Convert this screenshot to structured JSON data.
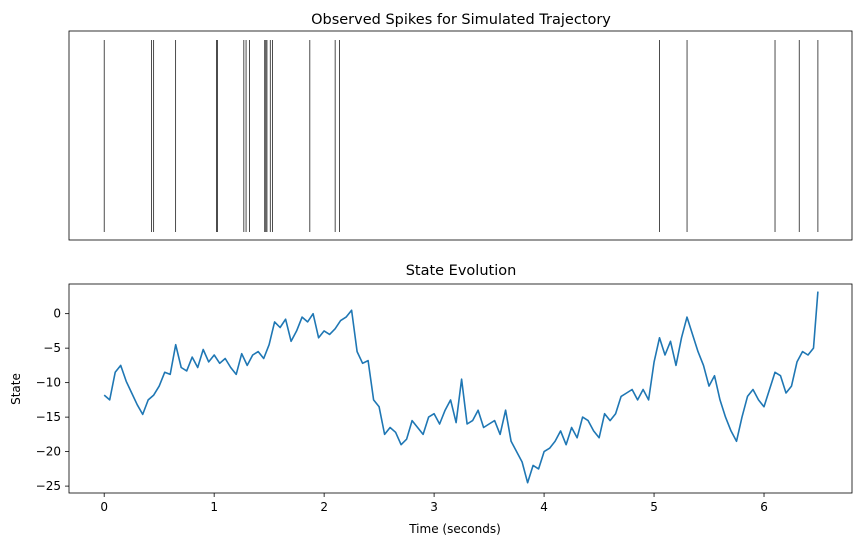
{
  "chart_data": [
    {
      "type": "raster",
      "title": "Observed Spikes for Simulated Trajectory",
      "xlabel": "",
      "ylabel": "",
      "xlim": [
        -0.32,
        6.8
      ],
      "spike_times": [
        0.0,
        0.43,
        0.45,
        0.65,
        1.02,
        1.03,
        1.27,
        1.29,
        1.32,
        1.46,
        1.47,
        1.48,
        1.51,
        1.53,
        1.87,
        2.1,
        2.14,
        5.05,
        5.3,
        6.1,
        6.32,
        6.49
      ],
      "color": "#000000"
    },
    {
      "type": "line",
      "title": "State Evolution",
      "xlabel": "Time (seconds)",
      "ylabel": "State",
      "xlim": [
        -0.32,
        6.8
      ],
      "ylim": [
        -26,
        4.3
      ],
      "xticks": [
        0,
        1,
        2,
        3,
        4,
        5,
        6
      ],
      "xtick_labels": [
        "0",
        "1",
        "2",
        "3",
        "4",
        "5",
        "6"
      ],
      "yticks": [
        0,
        -5,
        -10,
        -15,
        -20,
        -25
      ],
      "ytick_labels": [
        "0",
        "−5",
        "−10",
        "−15",
        "−20",
        "−25"
      ],
      "color": "#1f77b4",
      "series": [
        {
          "x": [
            0.0,
            0.05,
            0.1,
            0.15,
            0.2,
            0.25,
            0.3,
            0.35,
            0.4,
            0.45,
            0.5,
            0.55,
            0.6,
            0.65,
            0.7,
            0.75,
            0.8,
            0.85,
            0.9,
            0.95,
            1.0,
            1.05,
            1.1,
            1.15,
            1.2,
            1.25,
            1.3,
            1.35,
            1.4,
            1.45,
            1.5,
            1.55,
            1.6,
            1.65,
            1.7,
            1.75,
            1.8,
            1.85,
            1.9,
            1.95,
            2.0,
            2.05,
            2.1,
            2.15,
            2.2,
            2.25,
            2.3,
            2.35,
            2.4,
            2.45,
            2.5,
            2.55,
            2.6,
            2.65,
            2.7,
            2.75,
            2.8,
            2.85,
            2.9,
            2.95,
            3.0,
            3.05,
            3.1,
            3.15,
            3.2,
            3.25,
            3.3,
            3.35,
            3.4,
            3.45,
            3.5,
            3.55,
            3.6,
            3.65,
            3.7,
            3.75,
            3.8,
            3.85,
            3.9,
            3.95,
            4.0,
            4.05,
            4.1,
            4.15,
            4.2,
            4.25,
            4.3,
            4.35,
            4.4,
            4.45,
            4.5,
            4.55,
            4.6,
            4.65,
            4.7,
            4.75,
            4.8,
            4.85,
            4.9,
            4.95,
            5.0,
            5.05,
            5.1,
            5.15,
            5.2,
            5.25,
            5.3,
            5.35,
            5.4,
            5.45,
            5.5,
            5.55,
            5.6,
            5.65,
            5.7,
            5.75,
            5.8,
            5.85,
            5.9,
            5.95,
            6.0,
            6.05,
            6.1,
            6.15,
            6.2,
            6.25,
            6.3,
            6.35,
            6.4,
            6.45,
            6.49
          ],
          "y": [
            -11.8,
            -12.5,
            -8.5,
            -7.5,
            -9.8,
            -11.5,
            -13.2,
            -14.6,
            -12.5,
            -11.8,
            -10.5,
            -8.5,
            -8.8,
            -4.5,
            -7.8,
            -8.3,
            -6.3,
            -7.8,
            -5.2,
            -7.0,
            -6.0,
            -7.2,
            -6.5,
            -7.8,
            -8.8,
            -5.8,
            -7.5,
            -6.0,
            -5.5,
            -6.5,
            -4.5,
            -1.2,
            -2.0,
            -0.8,
            -4.0,
            -2.5,
            -0.5,
            -1.2,
            0.0,
            -3.5,
            -2.5,
            -3.0,
            -2.2,
            -1.0,
            -0.5,
            0.5,
            -5.5,
            -7.2,
            -6.8,
            -12.5,
            -13.5,
            -17.5,
            -16.5,
            -17.2,
            -19.0,
            -18.2,
            -15.5,
            -16.5,
            -17.5,
            -15.0,
            -14.5,
            -16.0,
            -14.0,
            -12.5,
            -15.8,
            -9.5,
            -16.0,
            -15.5,
            -14.0,
            -16.5,
            -16.0,
            -15.5,
            -17.5,
            -14.0,
            -18.5,
            -20.0,
            -21.5,
            -24.5,
            -22.0,
            -22.5,
            -20.0,
            -19.5,
            -18.5,
            -17.0,
            -19.0,
            -16.5,
            -18.0,
            -15.0,
            -15.5,
            -17.0,
            -18.0,
            -14.5,
            -15.5,
            -14.5,
            -12.0,
            -11.5,
            -11.0,
            -12.5,
            -11.0,
            -12.5,
            -7.0,
            -3.5,
            -6.0,
            -4.0,
            -7.5,
            -3.5,
            -0.5,
            -3.0,
            -5.5,
            -7.5,
            -10.5,
            -9.0,
            -12.5,
            -15.0,
            -17.0,
            -18.5,
            -15.0,
            -12.0,
            -11.0,
            -12.5,
            -13.5,
            -11.0,
            -8.5,
            -9.0,
            -11.5,
            -10.5,
            -7.0,
            -5.5,
            -6.0,
            -5.0,
            3.2
          ]
        }
      ]
    }
  ]
}
